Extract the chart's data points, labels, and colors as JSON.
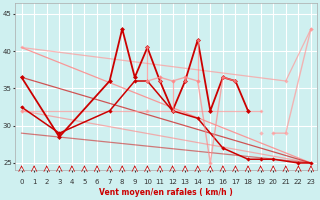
{
  "xlabel": "Vent moyen/en rafales ( km/h )",
  "bg_color": "#cff0f0",
  "grid_color": "#ffffff",
  "xlim": [
    -0.5,
    23.5
  ],
  "ylim": [
    24.0,
    46.5
  ],
  "yticks": [
    25,
    30,
    35,
    40,
    45
  ],
  "xticks": [
    0,
    1,
    2,
    3,
    4,
    5,
    6,
    7,
    8,
    9,
    10,
    11,
    12,
    13,
    14,
    15,
    16,
    17,
    18,
    19,
    20,
    21,
    22,
    23
  ],
  "series": [
    {
      "x": [
        0,
        21,
        23
      ],
      "y": [
        40.5,
        36,
        43
      ],
      "color": "#ff9999",
      "lw": 0.9,
      "marker": "D",
      "ms": 2.0,
      "alpha": 0.7,
      "connect_nulls": false
    },
    {
      "x": [
        0,
        19
      ],
      "y": [
        32,
        32
      ],
      "color": "#ff9999",
      "lw": 0.9,
      "marker": "D",
      "ms": 2.0,
      "alpha": 0.7,
      "connect_nulls": false
    },
    {
      "x": [
        0,
        23
      ],
      "y": [
        40.5,
        25.0
      ],
      "color": "#ff8888",
      "lw": 0.9,
      "marker": null,
      "ms": 0,
      "alpha": 0.85,
      "connect_nulls": false
    },
    {
      "x": [
        0,
        23
      ],
      "y": [
        32.0,
        25.0
      ],
      "color": "#ff8888",
      "lw": 0.9,
      "marker": null,
      "ms": 0,
      "alpha": 0.65,
      "connect_nulls": false
    },
    {
      "x": [
        0,
        23
      ],
      "y": [
        36.5,
        25.0
      ],
      "color": "#cc0000",
      "lw": 0.9,
      "marker": null,
      "ms": 0,
      "alpha": 0.65,
      "connect_nulls": false
    },
    {
      "x": [
        0,
        23
      ],
      "y": [
        29.0,
        25.0
      ],
      "color": "#cc0000",
      "lw": 0.9,
      "marker": null,
      "ms": 0,
      "alpha": 0.5,
      "connect_nulls": false
    },
    {
      "x": [
        0,
        1,
        2,
        3,
        4,
        5,
        6,
        7,
        8,
        9,
        10,
        11,
        12,
        13,
        14,
        15,
        16,
        17,
        18,
        19
      ],
      "y": [
        32,
        null,
        null,
        null,
        null,
        null,
        null,
        null,
        null,
        null,
        32,
        null,
        null,
        null,
        null,
        null,
        null,
        null,
        null,
        29
      ],
      "color": "#ff9999",
      "lw": 1.0,
      "marker": "D",
      "ms": 2.2,
      "alpha": 0.7,
      "connect_nulls": false
    },
    {
      "x": [
        0,
        3,
        7,
        8,
        9,
        10,
        11,
        12,
        13,
        14,
        15,
        16,
        17,
        18
      ],
      "y": [
        36.5,
        28.5,
        36,
        43,
        36.5,
        40.5,
        36,
        32,
        36,
        41.5,
        32,
        36.5,
        36,
        32
      ],
      "color": "#cc0000",
      "lw": 1.3,
      "marker": "D",
      "ms": 2.5,
      "alpha": 1.0,
      "connect_nulls": false
    },
    {
      "x": [
        0,
        3,
        7,
        9,
        10,
        12,
        14,
        16,
        18,
        19,
        20,
        22,
        23
      ],
      "y": [
        32.5,
        29,
        32,
        36,
        36,
        32,
        31,
        27,
        25.5,
        25.5,
        25.5,
        25,
        25
      ],
      "color": "#cc0000",
      "lw": 1.1,
      "marker": "D",
      "ms": 2.2,
      "alpha": 1.0,
      "connect_nulls": false
    },
    {
      "x": [
        20,
        21,
        23
      ],
      "y": [
        29,
        29,
        43
      ],
      "color": "#ff9999",
      "lw": 1.0,
      "marker": "D",
      "ms": 2.2,
      "alpha": 0.7,
      "connect_nulls": false
    },
    {
      "x": [
        10,
        11,
        12,
        13,
        14,
        15,
        16,
        17
      ],
      "y": [
        36,
        36.5,
        36,
        36.5,
        36,
        25,
        36.5,
        36
      ],
      "color": "#ff8888",
      "lw": 1.0,
      "marker": "D",
      "ms": 2.2,
      "alpha": 0.7,
      "connect_nulls": false
    },
    {
      "x": [
        10,
        10,
        null,
        11,
        11,
        null,
        12,
        12,
        null,
        13,
        13,
        null,
        14,
        14
      ],
      "y": [
        40.5,
        36,
        null,
        36.5,
        36,
        null,
        36,
        32,
        null,
        36,
        36.5,
        null,
        41.5,
        36
      ],
      "color": "#ff8888",
      "lw": 0.9,
      "marker": "D",
      "ms": 2.0,
      "alpha": 0.7,
      "connect_nulls": false
    }
  ]
}
